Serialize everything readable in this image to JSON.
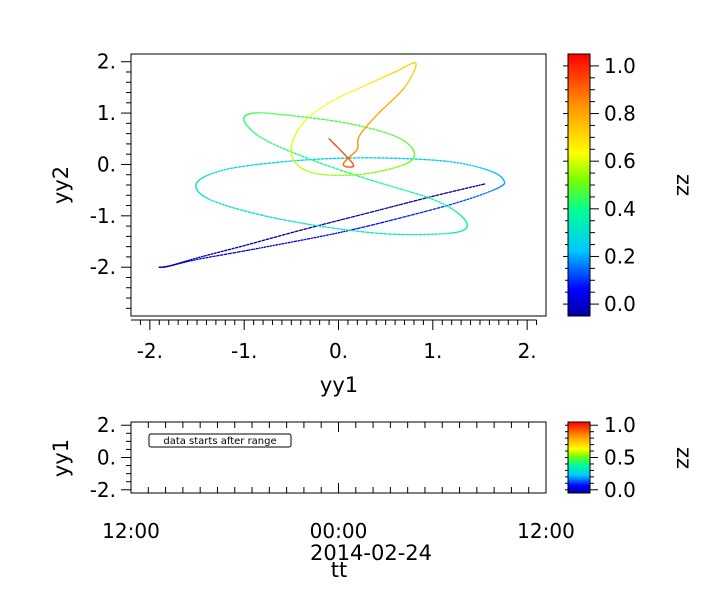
{
  "chart_data": [
    {
      "type": "scatter",
      "title": "",
      "xlabel": "yy1",
      "ylabel": "yy2",
      "colorbar_label": "zz",
      "xlim": [
        -2.2,
        2.2
      ],
      "ylim": [
        -2.95,
        2.15
      ],
      "x_ticks": [
        -2,
        -1,
        0,
        1,
        2
      ],
      "x_tick_labels": [
        "-2.",
        "-1.",
        "0.",
        "1.",
        "2."
      ],
      "y_ticks": [
        2,
        1,
        0,
        -1,
        -2
      ],
      "y_tick_labels": [
        "2.",
        "1.",
        "0.",
        "-1.",
        "-2."
      ],
      "colorbar_range": [
        -0.05,
        1.05
      ],
      "colorbar_ticks": [
        1.0,
        0.8,
        0.6,
        0.4,
        0.2,
        0.0
      ],
      "colorbar_tick_labels": [
        "1.0",
        "0.8",
        "0.6",
        "0.4",
        "0.2",
        "0.0"
      ],
      "colormap": "rainbow",
      "grid": false,
      "series": [
        {
          "x": [
            1.55,
            1.0,
            0.3,
            -0.4,
            -1.0,
            -1.5,
            -1.8,
            -1.9,
            -1.8,
            -1.5,
            -0.9,
            0.0,
            0.7,
            1.3,
            1.7,
            1.75,
            1.6,
            1.2,
            0.6,
            0.0,
            -0.6,
            -1.2,
            -1.5,
            -1.4,
            -0.9,
            -0.2,
            0.5,
            1.1,
            1.35,
            1.3,
            1.0,
            0.3,
            -0.3,
            -0.8,
            -1.0,
            -0.9,
            -0.5,
            0.1,
            0.6,
            0.8,
            0.7,
            0.2,
            -0.3,
            -0.5,
            -0.4,
            -0.1,
            0.3,
            0.6,
            0.82,
            0.7,
            0.4,
            0.22,
            0.2,
            0.1,
            0.05,
            0.1,
            0.15,
            -0.1
          ],
          "y": [
            -0.38,
            -0.62,
            -0.95,
            -1.28,
            -1.58,
            -1.82,
            -1.98,
            -2.0,
            -1.98,
            -1.85,
            -1.65,
            -1.33,
            -1.02,
            -0.72,
            -0.45,
            -0.3,
            -0.12,
            0.05,
            0.12,
            0.12,
            0.05,
            -0.1,
            -0.35,
            -0.65,
            -0.95,
            -1.2,
            -1.35,
            -1.35,
            -1.25,
            -1.0,
            -0.68,
            -0.28,
            0.1,
            0.5,
            0.85,
            1.0,
            0.95,
            0.8,
            0.55,
            0.25,
            0.0,
            -0.2,
            -0.15,
            0.2,
            0.75,
            1.2,
            1.55,
            1.8,
            1.97,
            1.5,
            0.95,
            0.55,
            0.3,
            0.12,
            0.0,
            -0.05,
            0.02,
            0.5
          ],
          "z": [
            0.0,
            0.0,
            0.0,
            0.01,
            0.01,
            0.02,
            0.02,
            0.03,
            0.04,
            0.05,
            0.07,
            0.09,
            0.12,
            0.15,
            0.2,
            0.24,
            0.25,
            0.26,
            0.27,
            0.28,
            0.29,
            0.3,
            0.31,
            0.32,
            0.33,
            0.34,
            0.35,
            0.36,
            0.38,
            0.39,
            0.4,
            0.41,
            0.42,
            0.43,
            0.44,
            0.45,
            0.46,
            0.47,
            0.48,
            0.49,
            0.51,
            0.53,
            0.56,
            0.58,
            0.6,
            0.63,
            0.66,
            0.69,
            0.7,
            0.74,
            0.77,
            0.79,
            0.81,
            0.83,
            0.85,
            0.87,
            0.89,
            0.91
          ]
        }
      ]
    },
    {
      "type": "scatter",
      "title": "",
      "xlabel": "tt",
      "ylabel": "yy1",
      "colorbar_label": "zz",
      "ylim": [
        -2.2,
        2.2
      ],
      "y_ticks": [
        2,
        0,
        -2
      ],
      "y_tick_labels": [
        "2.",
        "0.",
        "-2."
      ],
      "x_tick_labels": [
        "12:00",
        "00:00",
        "12:00"
      ],
      "x_date_label": "2014-02-24",
      "colorbar_range": [
        -0.05,
        1.05
      ],
      "colorbar_ticks": [
        1.0,
        0.5,
        0.0
      ],
      "colorbar_tick_labels": [
        "1.0",
        "0.5",
        "0.0"
      ],
      "colormap": "rainbow",
      "annotation": "data starts after range",
      "series": []
    }
  ]
}
